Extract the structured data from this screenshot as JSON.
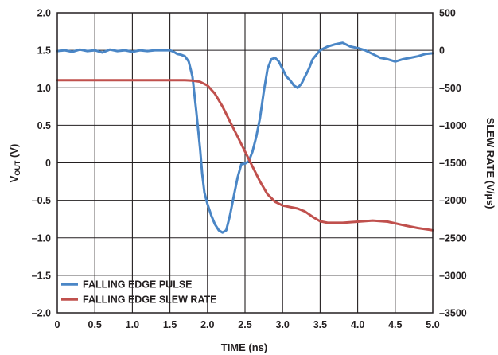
{
  "chart_data": {
    "type": "line",
    "xlabel": "TIME (ns)",
    "ylabel_left": {
      "main": "V",
      "sub": "OUT",
      "suffix": " (V)"
    },
    "ylabel_right": "SLEW RATE (V/µs)",
    "xlim": [
      0,
      5.0
    ],
    "ylim_left": [
      -2.0,
      2.0
    ],
    "ylim_right": [
      -3500,
      500
    ],
    "x_ticks": [
      "0",
      "0.5",
      "1.0",
      "1.5",
      "2.0",
      "2.5",
      "3.0",
      "3.5",
      "4.0",
      "4.5",
      "5.0"
    ],
    "y_left_ticks": [
      "2.0",
      "1.5",
      "1.0",
      "0.5",
      "0",
      "–0.5",
      "–1.0",
      "–1.5",
      "–2.0"
    ],
    "y_right_ticks": [
      "500",
      "0",
      "–500",
      "–1000",
      "–1500",
      "–2000",
      "–2500",
      "–3000",
      "–3500"
    ],
    "grid": true,
    "legend_position": "bottom-left",
    "series": [
      {
        "name": "FALLING EDGE PULSE",
        "axis": "left",
        "color": "#4a86c6",
        "x": [
          0,
          0.1,
          0.2,
          0.3,
          0.4,
          0.5,
          0.6,
          0.7,
          0.8,
          0.9,
          1.0,
          1.1,
          1.2,
          1.3,
          1.4,
          1.5,
          1.55,
          1.6,
          1.65,
          1.7,
          1.75,
          1.8,
          1.85,
          1.9,
          1.93,
          1.96,
          2.0,
          2.05,
          2.1,
          2.15,
          2.2,
          2.25,
          2.3,
          2.35,
          2.4,
          2.45,
          2.5,
          2.55,
          2.6,
          2.65,
          2.7,
          2.75,
          2.8,
          2.85,
          2.9,
          2.95,
          3.0,
          3.05,
          3.1,
          3.15,
          3.2,
          3.25,
          3.3,
          3.35,
          3.4,
          3.5,
          3.6,
          3.7,
          3.8,
          3.9,
          4.0,
          4.1,
          4.2,
          4.3,
          4.4,
          4.5,
          4.6,
          4.7,
          4.8,
          4.9,
          5.0
        ],
        "values": [
          1.49,
          1.5,
          1.48,
          1.51,
          1.49,
          1.5,
          1.47,
          1.51,
          1.49,
          1.5,
          1.48,
          1.5,
          1.49,
          1.5,
          1.5,
          1.5,
          1.48,
          1.45,
          1.44,
          1.42,
          1.35,
          1.15,
          0.7,
          0.2,
          -0.15,
          -0.4,
          -0.55,
          -0.7,
          -0.82,
          -0.9,
          -0.93,
          -0.9,
          -0.7,
          -0.45,
          -0.2,
          -0.02,
          -0.01,
          0.02,
          0.15,
          0.35,
          0.6,
          0.95,
          1.25,
          1.38,
          1.4,
          1.35,
          1.25,
          1.15,
          1.1,
          1.03,
          1.0,
          1.05,
          1.15,
          1.25,
          1.38,
          1.5,
          1.55,
          1.58,
          1.6,
          1.55,
          1.53,
          1.5,
          1.45,
          1.4,
          1.38,
          1.35,
          1.38,
          1.4,
          1.42,
          1.45,
          1.46
        ]
      },
      {
        "name": "FALLING EDGE SLEW RATE",
        "axis": "right",
        "color": "#c0504d",
        "x": [
          0,
          0.5,
          1.0,
          1.5,
          1.7,
          1.8,
          1.9,
          2.0,
          2.1,
          2.2,
          2.3,
          2.4,
          2.5,
          2.6,
          2.7,
          2.8,
          2.9,
          3.0,
          3.1,
          3.2,
          3.3,
          3.4,
          3.5,
          3.6,
          3.8,
          4.0,
          4.2,
          4.4,
          4.6,
          4.8,
          5.0
        ],
        "values": [
          -400,
          -400,
          -400,
          -400,
          -400,
          -405,
          -420,
          -470,
          -580,
          -750,
          -950,
          -1150,
          -1350,
          -1550,
          -1750,
          -1920,
          -2020,
          -2070,
          -2090,
          -2110,
          -2150,
          -2220,
          -2280,
          -2300,
          -2300,
          -2285,
          -2270,
          -2285,
          -2330,
          -2370,
          -2400
        ]
      }
    ]
  }
}
